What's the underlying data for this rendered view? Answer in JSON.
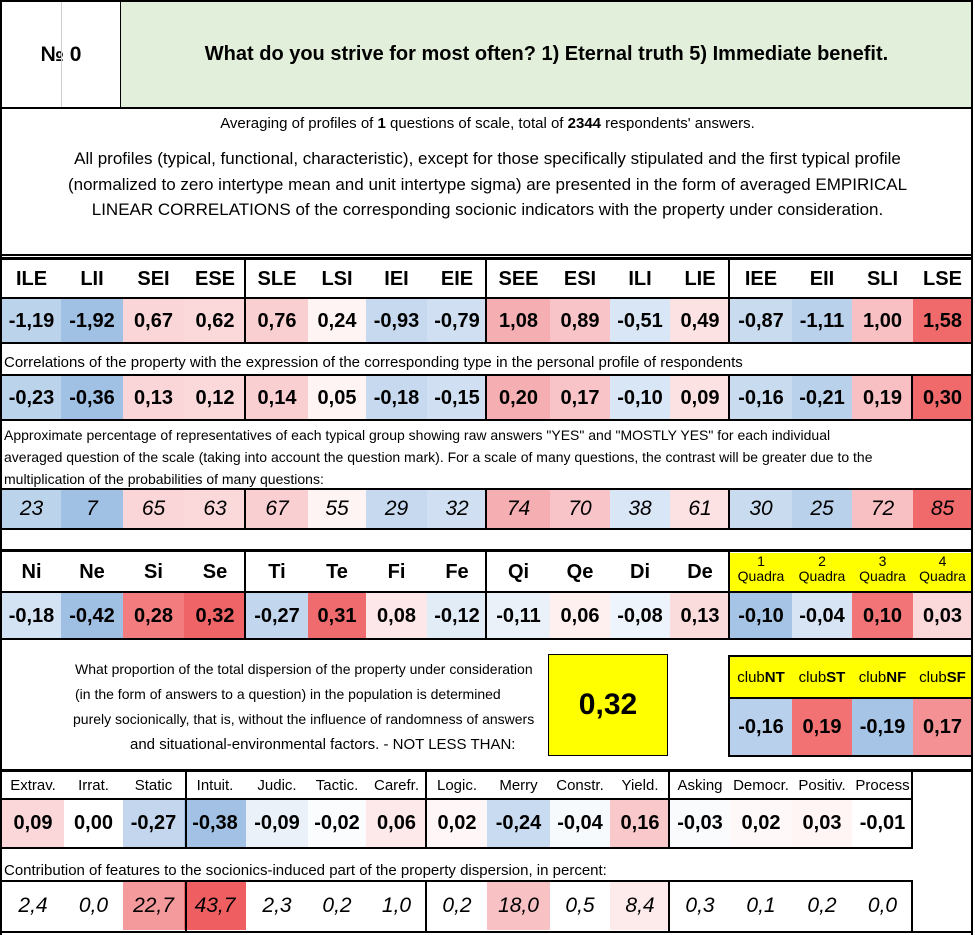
{
  "header": {
    "number_label": "№ 0",
    "question": "What do you strive for most often? 1) Eternal truth 5) Immediate benefit."
  },
  "intro": {
    "averaging_prefix": "Averaging of profiles of ",
    "questions_count": "1",
    "averaging_mid": " questions of scale, total of ",
    "respondents_count": "2344",
    "averaging_suffix": " respondents' answers.",
    "profile_lines": [
      "All profiles (typical, functional, characteristic), except for those specifically stipulated and the first typical profile",
      "(normalized to zero intertype mean and unit intertype sigma) are presented in the form of averaged EMPIRICAL",
      "LINEAR CORRELATIONS of the corresponding socionic indicators with the property under consideration."
    ]
  },
  "types": {
    "labels": [
      "ILE",
      "LII",
      "SEI",
      "ESE",
      "SLE",
      "LSI",
      "IEI",
      "EIE",
      "SEE",
      "ESI",
      "ILI",
      "LIE",
      "IEE",
      "EII",
      "SLI",
      "LSE"
    ],
    "profile": [
      "-1,19",
      "-1,92",
      "0,67",
      "0,62",
      "0,76",
      "0,24",
      "-0,93",
      "-0,79",
      "1,08",
      "0,89",
      "-0,51",
      "0,49",
      "-0,87",
      "-1,11",
      "1,00",
      "1,58"
    ],
    "profile_colors": [
      "#bcd3ec",
      "#a0c0e4",
      "#fbd6d8",
      "#fbd9db",
      "#f9cfd2",
      "#fff4f4",
      "#c6d9ef",
      "#d0e0f2",
      "#f5aeb1",
      "#f8c4c7",
      "#d9e6f5",
      "#fce2e3",
      "#c8dbef",
      "#b9d1eb",
      "#f8c0c3",
      "#f06a6b"
    ],
    "correlation_caption": "Correlations of the property with the expression of the corresponding type in the personal profile of respondents",
    "correlations": [
      "-0,23",
      "-0,36",
      "0,13",
      "0,12",
      "0,14",
      "0,05",
      "-0,18",
      "-0,15",
      "0,20",
      "0,17",
      "-0,10",
      "0,09",
      "-0,16",
      "-0,21",
      "0,19",
      "0,30"
    ],
    "correlation_colors": [
      "#bcd3ec",
      "#a0c0e4",
      "#fbd6d8",
      "#fbd9db",
      "#f9cfd2",
      "#fff4f4",
      "#c6d9ef",
      "#d0e0f2",
      "#f5aeb1",
      "#f8c4c7",
      "#d9e6f5",
      "#fce2e3",
      "#c8dbef",
      "#b9d1eb",
      "#f8c0c3",
      "#f06a6b"
    ],
    "percentage_caption_lines": [
      "Approximate percentage of representatives of each typical group showing raw answers \"YES\" and \"MOSTLY YES\" for each individual",
      "averaged question of the scale (taking into account the question mark). For a scale of many questions, the contrast will be greater due to the",
      "multiplication of the probabilities of many questions:"
    ],
    "percentages": [
      "23",
      "7",
      "65",
      "63",
      "67",
      "55",
      "29",
      "32",
      "74",
      "70",
      "38",
      "61",
      "30",
      "25",
      "72",
      "85"
    ]
  },
  "functions": {
    "labels": [
      "Ni",
      "Ne",
      "Si",
      "Se",
      "Ti",
      "Te",
      "Fi",
      "Fe",
      "Qi",
      "Qe",
      "Di",
      "De"
    ],
    "values": [
      "-0,18",
      "-0,42",
      "0,28",
      "0,32",
      "-0,27",
      "0,31",
      "0,08",
      "-0,12",
      "-0,11",
      "0,06",
      "-0,08",
      "0,13"
    ],
    "colors": [
      "#d4e3f3",
      "#9fbfe3",
      "#f27c7e",
      "#ef6466",
      "#c2d6ee",
      "#f06b6d",
      "#fde7e8",
      "#e2ecf7",
      "#eaf1f9",
      "#fff0f0",
      "#eef4fb",
      "#fbdcdd"
    ]
  },
  "quadras": {
    "numbers": [
      "1",
      "2",
      "3",
      "4"
    ],
    "word": "Quadra",
    "header_color": "#ffff00",
    "values": [
      "-0,10",
      "-0,04",
      "0,10",
      "0,03"
    ],
    "colors": [
      "#a6c4e6",
      "#d6e4f3",
      "#f27476",
      "#fbd8da"
    ]
  },
  "dispersion": {
    "lines": [
      "What proportion of the total dispersion of the property under consideration",
      "(in the form of answers to a question) in the population is determined",
      "purely socionically, that is, without the influence of randomness of answers",
      "and situational-environmental factors. - NOT LESS THAN:"
    ],
    "value": "0,32",
    "highlight_color": "#ffff00"
  },
  "clubs": {
    "prefix": "club",
    "codes": [
      "NT",
      "ST",
      "NF",
      "SF"
    ],
    "values": [
      "-0,16",
      "0,19",
      "-0,19",
      "0,17"
    ],
    "colors": [
      "#b8d0eb",
      "#f27274",
      "#a6c4e6",
      "#f49194"
    ]
  },
  "traits": {
    "labels": [
      "Extrav.",
      "Irrat.",
      "Static",
      "Intuit.",
      "Judic.",
      "Tactic.",
      "Carefr.",
      "Logic.",
      "Merry",
      "Constr.",
      "Yield.",
      "Asking",
      "Democr.",
      "Positiv.",
      "Process"
    ],
    "values": [
      "0,09",
      "0,00",
      "-0,27",
      "-0,38",
      "-0,09",
      "-0,02",
      "0,06",
      "0,02",
      "-0,24",
      "-0,04",
      "0,16",
      "-0,03",
      "0,02",
      "0,03",
      "-0,01"
    ],
    "colors": [
      "#fbd7d9",
      "#ffffff",
      "#c3d6ee",
      "#a3c1e4",
      "#eaf1f9",
      "#fafcfe",
      "#fde9ea",
      "#fff7f7",
      "#c9dbf0",
      "#f7fafd",
      "#f9c8cb",
      "#f9fbfd",
      "#fff8f8",
      "#fff5f5",
      "#ffffff"
    ],
    "contribution_caption": "Contribution of features to the socionics-induced part of the property dispersion, in percent:",
    "contributions": [
      "2,4",
      "0,0",
      "22,7",
      "43,7",
      "2,3",
      "0,2",
      "1,0",
      "0,2",
      "18,0",
      "0,5",
      "8,4",
      "0,3",
      "0,1",
      "0,2",
      "0,0"
    ],
    "contribution_colors": [
      "#ffffff",
      "#ffffff",
      "#f49a9d",
      "#ef5f61",
      "#ffffff",
      "#ffffff",
      "#ffffff",
      "#ffffff",
      "#f8c1c4",
      "#ffffff",
      "#fdebec",
      "#ffffff",
      "#ffffff",
      "#ffffff",
      "#ffffff"
    ]
  }
}
